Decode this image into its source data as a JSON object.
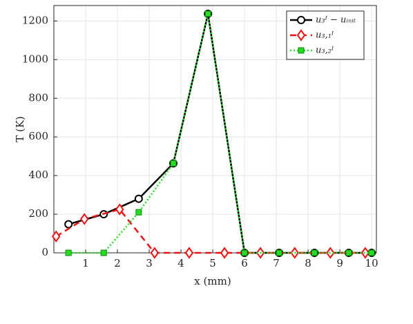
{
  "chart_data": {
    "type": "line",
    "x_label": "x (mm)",
    "y_label": "T (K)",
    "xlim": [
      0,
      10.15
    ],
    "ylim": [
      0,
      1280
    ],
    "xticks": [
      1,
      2,
      3,
      4,
      5,
      6,
      7,
      8,
      9,
      10
    ],
    "yticks": [
      0,
      200,
      400,
      600,
      800,
      1000,
      1200
    ],
    "grid": true,
    "legend": "top-right",
    "series": [
      {
        "name": "u₃ᴵ − uᵢₙᵢₜ",
        "color": "#000000",
        "line_style": "solid",
        "marker": "circle",
        "x": [
          0.46,
          1.57,
          2.67,
          3.76,
          4.85,
          6.0,
          7.09,
          8.2,
          9.28,
          10.0
        ],
        "values": [
          148,
          200,
          280,
          463,
          1237,
          0,
          0,
          0,
          0,
          0
        ]
      },
      {
        "name": "u₃,₁ᴵ",
        "color": "#ee1111",
        "line_style": "dashed",
        "marker": "diamond",
        "x": [
          0.07,
          0.96,
          2.07,
          3.17,
          4.26,
          5.37,
          6.5,
          7.58,
          8.7,
          9.8
        ],
        "values": [
          85,
          175,
          225,
          0,
          0,
          0,
          0,
          0,
          0,
          0
        ]
      },
      {
        "name": "u₃,₂ᴵ",
        "color": "#22dd22",
        "line_style": "dotted",
        "marker": "square",
        "x": [
          0.46,
          1.57,
          2.67,
          3.76,
          4.85,
          6.0,
          7.09,
          8.2,
          9.28,
          10.0
        ],
        "values": [
          0,
          0,
          210,
          463,
          1237,
          0,
          0,
          0,
          0,
          0
        ]
      }
    ]
  }
}
